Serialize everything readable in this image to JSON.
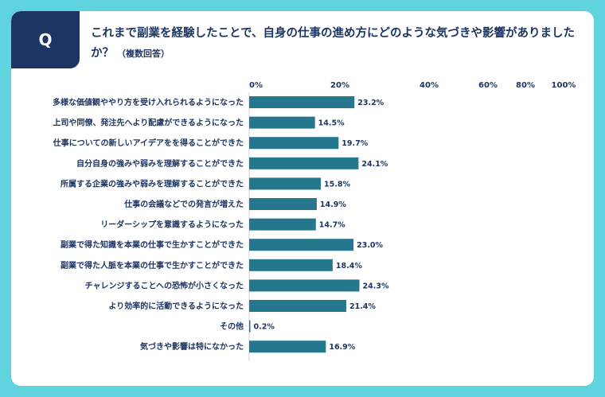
{
  "question": {
    "badge": "Q",
    "text": "これまで副業を経験したことで、自身の仕事の進め方にどのような気づきや影響がありましたか？",
    "note": "（複数回答）"
  },
  "colors": {
    "background": "#5fd3de",
    "bar": "#24778c",
    "text": "#1d3563",
    "badge": "#1d3563"
  },
  "chart_data": {
    "type": "bar",
    "orientation": "horizontal",
    "title": "これまで副業を経験したことで、自身の仕事の進め方にどのような気づきや影響がありましたか？",
    "xlim": [
      0,
      100
    ],
    "ticks": [
      {
        "value": 0,
        "label": "0%"
      },
      {
        "value": 20,
        "label": "20%"
      },
      {
        "value": 40,
        "label": "40%"
      },
      {
        "value": 60,
        "label": "60%"
      },
      {
        "value": 80,
        "label": "80%"
      },
      {
        "value": 100,
        "label": "100%"
      }
    ],
    "grid": false,
    "categories": [
      "多様な価値観ややり方を受け入れられるようになった",
      "上司や同僚、発注先へより配慮ができるようになった",
      "仕事についての新しいアイデアをを得ることができた",
      "自分自身の強みや弱みを理解することができた",
      "所属する企業の強みや弱みを理解することができた",
      "仕事の会議などでの発言が増えた",
      "リーダーシップを意識するようになった",
      "副業で得た知識を本業の仕事で生かすことができた",
      "副業で得た人脈を本業の仕事で生かすことができた",
      "チャレンジすることへの恐怖が小さくなった",
      "より効率的に活動できるようになった",
      "その他",
      "気づきや影響は特になかった"
    ],
    "values": [
      23.2,
      14.5,
      19.7,
      24.1,
      15.8,
      14.9,
      14.7,
      23.0,
      18.4,
      24.3,
      21.4,
      0.2,
      16.9
    ],
    "value_labels": [
      "23.2%",
      "14.5%",
      "19.7%",
      "24.1%",
      "15.8%",
      "14.9%",
      "14.7%",
      "23.0%",
      "18.4%",
      "24.3%",
      "21.4%",
      "0.2%",
      "16.9%"
    ]
  }
}
